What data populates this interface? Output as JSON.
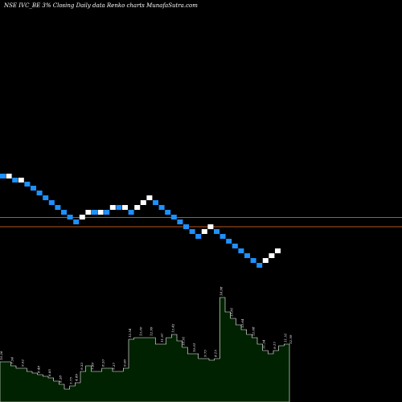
{
  "header": {
    "text": "NSE IVC_BE 3% Closing Daily data Renko charts MunafaSutra.com"
  },
  "colors": {
    "background": "#000000",
    "up_brick": "#ffffff",
    "down_brick": "#1e90ff",
    "line": "#b5541e",
    "volume_fill": "#002200",
    "volume_edge": "#ffffff"
  },
  "chart_data": {
    "type": "renko",
    "title": "NSE IVC_BE 3% Closing Daily data Renko charts MunafaSutra.com",
    "brick_size_pct": 3,
    "reference_lines_levels": [
      270.5,
      282
    ],
    "bricks": [
      {
        "dir": "down",
        "top": 216
      },
      {
        "dir": "up",
        "top": 216
      },
      {
        "dir": "down",
        "top": 221
      },
      {
        "dir": "up",
        "top": 221
      },
      {
        "dir": "down",
        "top": 226
      },
      {
        "dir": "down",
        "top": 231
      },
      {
        "dir": "down",
        "top": 237
      },
      {
        "dir": "down",
        "top": 243
      },
      {
        "dir": "down",
        "top": 249
      },
      {
        "dir": "down",
        "top": 255
      },
      {
        "dir": "down",
        "top": 261
      },
      {
        "dir": "down",
        "top": 267
      },
      {
        "dir": "down",
        "top": 273
      },
      {
        "dir": "up",
        "top": 267
      },
      {
        "dir": "up",
        "top": 261
      },
      {
        "dir": "down",
        "top": 261
      },
      {
        "dir": "up",
        "top": 261
      },
      {
        "dir": "down",
        "top": 261
      },
      {
        "dir": "up",
        "top": 255
      },
      {
        "dir": "down",
        "top": 255
      },
      {
        "dir": "up",
        "top": 255
      },
      {
        "dir": "down",
        "top": 261
      },
      {
        "dir": "up",
        "top": 255
      },
      {
        "dir": "up",
        "top": 249
      },
      {
        "dir": "up",
        "top": 243
      },
      {
        "dir": "down",
        "top": 249
      },
      {
        "dir": "down",
        "top": 255
      },
      {
        "dir": "down",
        "top": 261
      },
      {
        "dir": "down",
        "top": 267
      },
      {
        "dir": "down",
        "top": 273
      },
      {
        "dir": "down",
        "top": 279
      },
      {
        "dir": "down",
        "top": 285
      },
      {
        "dir": "down",
        "top": 291
      },
      {
        "dir": "up",
        "top": 285
      },
      {
        "dir": "up",
        "top": 279
      },
      {
        "dir": "down",
        "top": 285
      },
      {
        "dir": "down",
        "top": 291
      },
      {
        "dir": "down",
        "top": 297
      },
      {
        "dir": "down",
        "top": 303
      },
      {
        "dir": "down",
        "top": 309
      },
      {
        "dir": "down",
        "top": 315
      },
      {
        "dir": "down",
        "top": 321
      },
      {
        "dir": "down",
        "top": 327
      },
      {
        "dir": "up",
        "top": 321
      },
      {
        "dir": "up",
        "top": 315
      },
      {
        "dir": "up",
        "top": 309
      }
    ],
    "volume_levels": [
      450,
      450,
      455,
      458,
      458,
      462,
      464,
      466,
      468,
      470,
      474,
      478,
      484,
      480,
      476,
      462,
      455,
      462,
      462,
      458,
      458,
      462,
      462,
      458,
      422,
      420,
      420,
      420,
      420,
      428,
      428,
      420,
      416,
      424,
      432,
      440,
      440,
      446,
      446,
      448,
      446,
      370,
      388,
      396,
      404,
      410,
      416,
      420,
      428,
      436,
      440,
      436,
      430,
      428,
      430
    ],
    "volume_labels": [
      {
        "i": 0,
        "text": "10.26"
      },
      {
        "i": 2,
        "text": "7.54"
      },
      {
        "i": 4,
        "text": "9.02"
      },
      {
        "i": 7,
        "text": "8.48"
      },
      {
        "i": 9,
        "text": "6.85"
      },
      {
        "i": 11,
        "text": "8.28"
      },
      {
        "i": 13,
        "text": "5.75"
      },
      {
        "i": 14,
        "text": "4.89"
      },
      {
        "i": 15,
        "text": "9.33"
      },
      {
        "i": 17,
        "text": "7.89"
      },
      {
        "i": 19,
        "text": "8.20"
      },
      {
        "i": 21,
        "text": "7.37"
      },
      {
        "i": 23,
        "text": "9.06"
      },
      {
        "i": 24,
        "text": "12.54"
      },
      {
        "i": 26,
        "text": "13.00"
      },
      {
        "i": 28,
        "text": "12.99"
      },
      {
        "i": 30,
        "text": "11.97"
      },
      {
        "i": 32,
        "text": "12.42"
      },
      {
        "i": 34,
        "text": "10.91"
      },
      {
        "i": 36,
        "text": "10.01"
      },
      {
        "i": 38,
        "text": "9.73"
      },
      {
        "i": 40,
        "text": "8.15"
      },
      {
        "i": 41,
        "text": "14.98"
      },
      {
        "i": 43,
        "text": "15.81"
      },
      {
        "i": 45,
        "text": "13.64"
      },
      {
        "i": 47,
        "text": "12.68"
      },
      {
        "i": 49,
        "text": "11.34"
      },
      {
        "i": 51,
        "text": "9.17"
      },
      {
        "i": 53,
        "text": "11.51"
      },
      {
        "i": 54,
        "text": "12.59"
      }
    ]
  }
}
